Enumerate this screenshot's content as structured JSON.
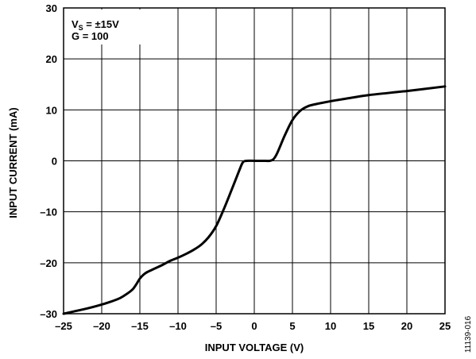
{
  "chart_data": {
    "type": "line",
    "xlabel": "INPUT VOLTAGE (V)",
    "ylabel": "INPUT CURRENT (mA)",
    "xlim": [
      -25,
      25
    ],
    "ylim": [
      -30,
      30
    ],
    "xticks": [
      -25,
      -20,
      -15,
      -10,
      -5,
      0,
      5,
      10,
      15,
      20,
      25
    ],
    "yticks": [
      -30,
      -20,
      -10,
      0,
      10,
      20,
      30
    ],
    "xtick_labels": [
      "–25",
      "–20",
      "–15",
      "–10",
      "–5",
      "0",
      "5",
      "10",
      "15",
      "20",
      "25"
    ],
    "ytick_labels": [
      "–30",
      "–20",
      "–10",
      "0",
      "10",
      "20",
      "30"
    ],
    "grid": true,
    "annotation": {
      "line1_prefix": "V",
      "line1_sub": "S",
      "line1_rest": " = ±15V",
      "line2": "G = 100"
    },
    "figure_id": "11139-016",
    "series": [
      {
        "color": "#000000",
        "x": [
          -25,
          -22,
          -20,
          -18,
          -17,
          -16,
          -15.5,
          -15,
          -14.5,
          -14,
          -13,
          -12,
          -11,
          -10,
          -9,
          -8,
          -7,
          -6,
          -5,
          -4,
          -3,
          -2,
          -1.5,
          -1,
          0,
          1,
          1.5,
          2,
          2.5,
          3,
          4,
          5,
          6,
          7,
          8,
          10,
          12,
          15,
          20,
          25
        ],
        "y": [
          -30,
          -29,
          -28.2,
          -27.2,
          -26.4,
          -25.3,
          -24.3,
          -23.1,
          -22.3,
          -21.8,
          -21.1,
          -20.4,
          -19.6,
          -19.0,
          -18.3,
          -17.5,
          -16.5,
          -15.0,
          -12.8,
          -9.5,
          -5.8,
          -2.0,
          -0.3,
          0,
          0,
          0,
          0,
          0,
          0.3,
          1.5,
          5,
          8,
          9.8,
          10.7,
          11.1,
          11.7,
          12.2,
          12.9,
          13.7,
          14.6
        ]
      }
    ]
  }
}
